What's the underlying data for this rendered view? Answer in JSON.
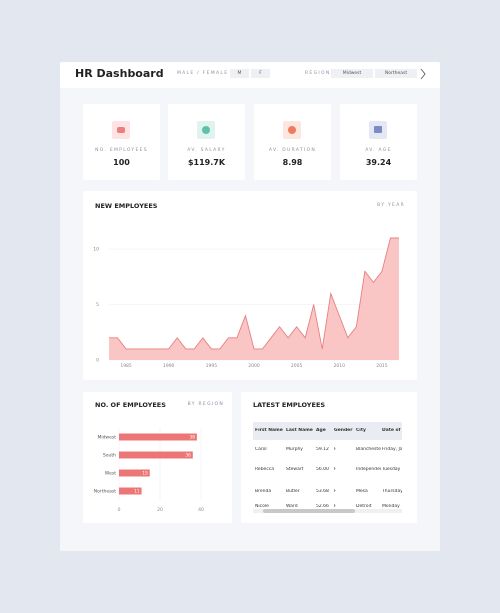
{
  "header": {
    "title": "HR Dashboard",
    "gender_label": "MALE / FEMALE",
    "gender_options": [
      "M",
      "F"
    ],
    "region_label": "REGION",
    "region_options": [
      "Midwest",
      "Northeast"
    ]
  },
  "kpis": [
    {
      "label": "NO. EMPLOYEES",
      "value": "100"
    },
    {
      "label": "AV. SALARY",
      "value": "$119.7K"
    },
    {
      "label": "AV. DURATION",
      "value": "8.98"
    },
    {
      "label": "AV. AGE",
      "value": "39.24"
    }
  ],
  "chart_data": [
    {
      "type": "area",
      "title": "NEW EMPLOYEES",
      "subtitle": "BY YEAR",
      "color": "#ea7f7f",
      "fill": "#f9c5c5",
      "x": [
        1983,
        1984,
        1985,
        1986,
        1987,
        1988,
        1989,
        1990,
        1991,
        1992,
        1993,
        1994,
        1995,
        1996,
        1997,
        1998,
        1999,
        2000,
        2001,
        2002,
        2003,
        2004,
        2005,
        2006,
        2007,
        2008,
        2009,
        2010,
        2011,
        2012,
        2013,
        2014,
        2015,
        2016,
        2017
      ],
      "values": [
        2,
        2,
        1,
        1,
        1,
        1,
        1,
        1,
        2,
        1,
        1,
        2,
        1,
        1,
        2,
        2,
        4,
        1,
        1,
        2,
        3,
        2,
        3,
        2,
        5,
        1,
        6,
        4,
        2,
        3,
        8,
        7,
        8,
        11,
        11
      ],
      "xlim": [
        1983,
        2017
      ],
      "xticks": [
        1985,
        1990,
        1995,
        2000,
        2005,
        2010,
        2015
      ],
      "ylim": [
        0,
        11
      ],
      "yticks": [
        0,
        5,
        10
      ],
      "grid": true
    },
    {
      "type": "barh",
      "title": "NO. OF EMPLOYEES",
      "subtitle": "BY REGION",
      "color": "#ec7676",
      "categories": [
        "Midwest",
        "South",
        "West",
        "Northeast"
      ],
      "values": [
        38,
        36,
        15,
        11
      ],
      "xlim": [
        0,
        40
      ],
      "xticks": [
        0,
        20,
        40
      ],
      "grid": true
    }
  ],
  "table": {
    "title": "LATEST EMPLOYEES",
    "columns": [
      "First Name",
      "Last Name",
      "Age",
      "Gender",
      "City",
      "Date of"
    ],
    "rows": [
      [
        "Carol",
        "Murphy",
        "59.12",
        "F",
        "Blanchester",
        "Friday, Ja"
      ],
      [
        "Rebecca",
        "Stewart",
        "56.00",
        "F",
        "Independence",
        "Tuesday"
      ],
      [
        "Brenda",
        "Butler",
        "53.68",
        "F",
        "Mesa",
        "Thursday"
      ],
      [
        "Nicole",
        "Ward",
        "52.66",
        "F",
        "Detroit",
        "Monday"
      ]
    ]
  }
}
